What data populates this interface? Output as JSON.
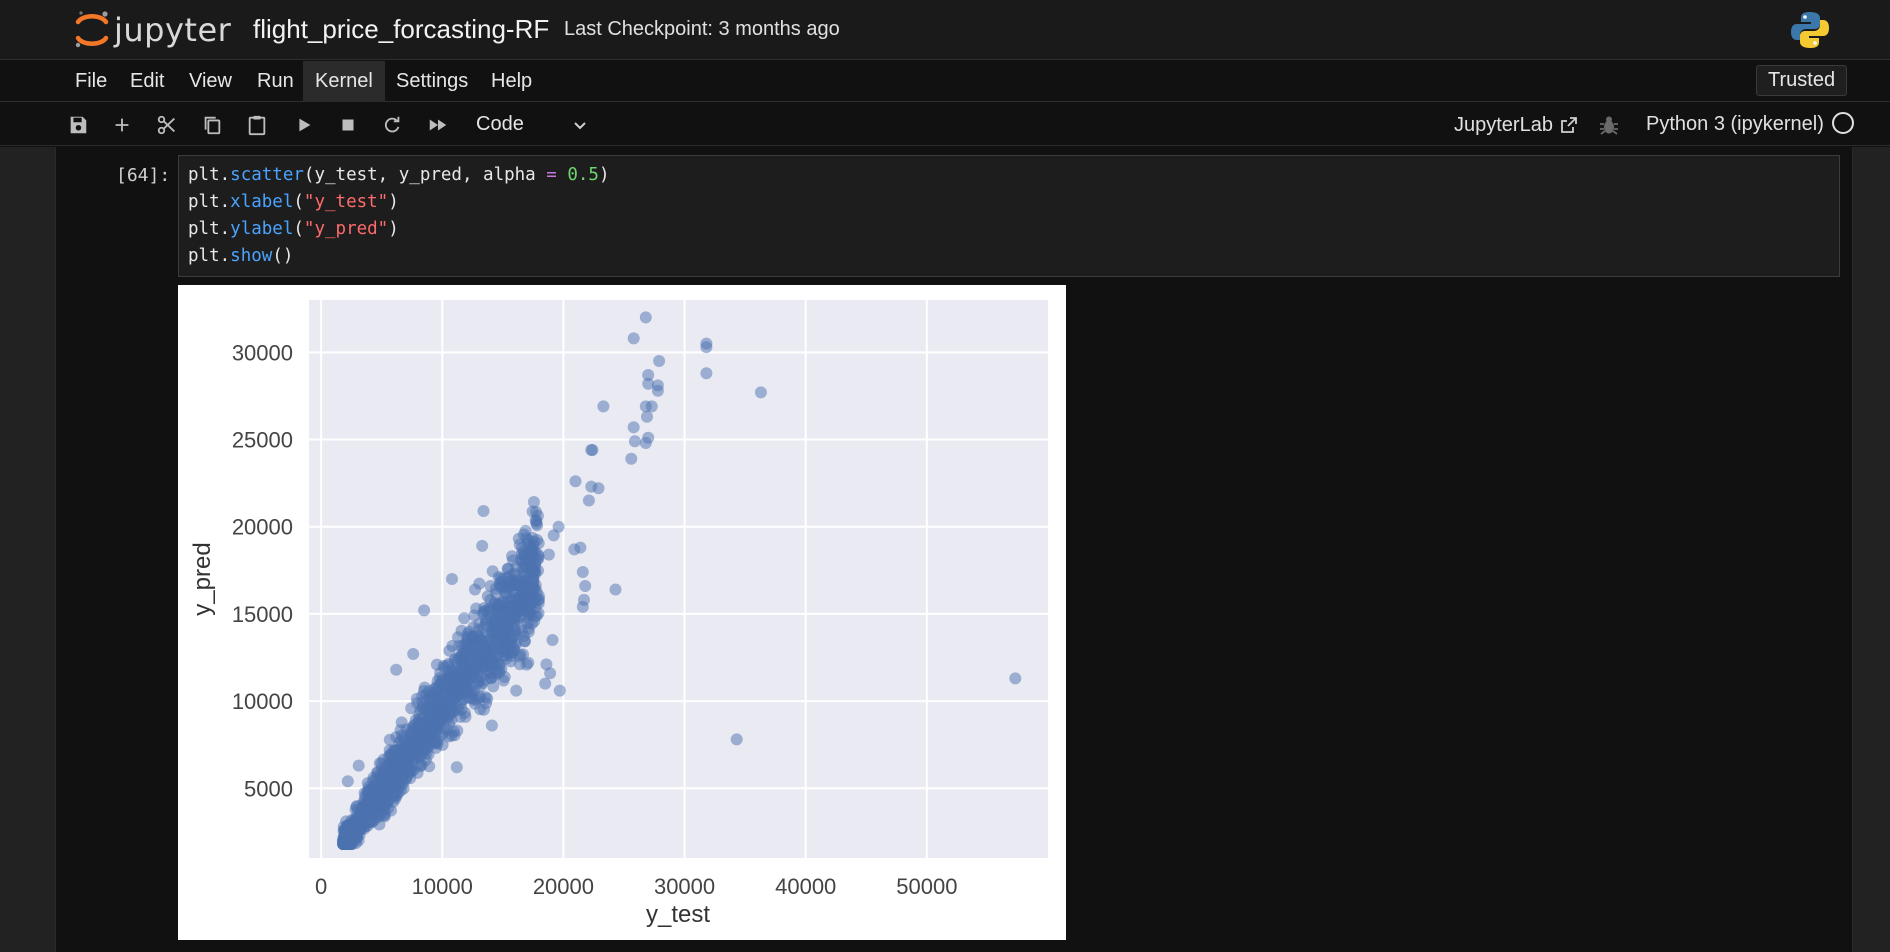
{
  "header": {
    "logo_text": "jupyter",
    "notebook_title": "flight_price_forcasting-RF",
    "checkpoint": "Last Checkpoint: 3 months ago"
  },
  "menu": {
    "items": [
      "File",
      "Edit",
      "View",
      "Run",
      "Kernel",
      "Settings",
      "Help"
    ],
    "active": "Kernel",
    "trusted_label": "Trusted"
  },
  "toolbar": {
    "icons": [
      "save-icon",
      "add-icon",
      "cut-icon",
      "copy-icon",
      "paste-icon",
      "run-icon",
      "stop-icon",
      "restart-icon",
      "fast-forward-icon"
    ],
    "cell_type": "Code",
    "jupyterlab_label": "JupyterLab",
    "kernel_name": "Python 3 (ipykernel)"
  },
  "cell": {
    "prompt": "[64]:",
    "code_lines": [
      "plt.scatter(y_test, y_pred, alpha = 0.5)",
      "plt.xlabel(\"y_test\")",
      "plt.ylabel(\"y_pred\")",
      "plt.show()"
    ]
  },
  "chart_data": {
    "type": "scatter",
    "title": "",
    "xlabel": "y_test",
    "ylabel": "y_pred",
    "xlim": [
      -1000,
      60000
    ],
    "ylim": [
      1000,
      33000
    ],
    "xticks": [
      0,
      10000,
      20000,
      30000,
      40000,
      50000
    ],
    "yticks": [
      5000,
      10000,
      15000,
      20000,
      25000,
      30000
    ],
    "grid": true,
    "alpha": 0.5,
    "color": "#4c72b0",
    "background": "#eaeaf2",
    "outliers": [
      [
        26800,
        32000
      ],
      [
        25800,
        30800
      ],
      [
        31800,
        30500
      ],
      [
        31800,
        30300
      ],
      [
        36300,
        27700
      ],
      [
        31800,
        28800
      ],
      [
        27900,
        29500
      ],
      [
        27000,
        28700
      ],
      [
        27000,
        28200
      ],
      [
        27800,
        27800
      ],
      [
        27800,
        28100
      ],
      [
        23300,
        26900
      ],
      [
        26800,
        26900
      ],
      [
        27300,
        26900
      ],
      [
        26900,
        26300
      ],
      [
        25800,
        25700
      ],
      [
        25900,
        24900
      ],
      [
        26800,
        24800
      ],
      [
        27000,
        25100
      ],
      [
        25600,
        23900
      ],
      [
        22300,
        24400
      ],
      [
        22400,
        24400
      ],
      [
        21000,
        22600
      ],
      [
        22300,
        22300
      ],
      [
        22900,
        22200
      ],
      [
        22100,
        21500
      ],
      [
        13400,
        20900
      ],
      [
        19600,
        20000
      ],
      [
        19200,
        19500
      ],
      [
        21400,
        18800
      ],
      [
        20900,
        18700
      ],
      [
        18800,
        18400
      ],
      [
        17900,
        18400
      ],
      [
        21600,
        17400
      ],
      [
        21800,
        16600
      ],
      [
        24300,
        16400
      ],
      [
        21700,
        15800
      ],
      [
        21600,
        15400
      ],
      [
        19100,
        13500
      ],
      [
        18600,
        12100
      ],
      [
        18900,
        11600
      ],
      [
        18500,
        11000
      ],
      [
        19700,
        10600
      ],
      [
        34300,
        7800
      ],
      [
        57300,
        11300
      ],
      [
        15900,
        16900
      ],
      [
        14500,
        15000
      ],
      [
        12700,
        16400
      ],
      [
        13300,
        18900
      ],
      [
        10800,
        17000
      ],
      [
        16100,
        10600
      ],
      [
        17100,
        12200
      ],
      [
        11200,
        6200
      ],
      [
        14100,
        8600
      ],
      [
        3100,
        6300
      ],
      [
        2200,
        5400
      ],
      [
        7600,
        12700
      ],
      [
        8500,
        15200
      ],
      [
        6200,
        11800
      ]
    ],
    "dense_cloud": {
      "x_range": [
        1800,
        18000
      ],
      "trend": "y_pred approximately equals y_test with spread"
    }
  }
}
